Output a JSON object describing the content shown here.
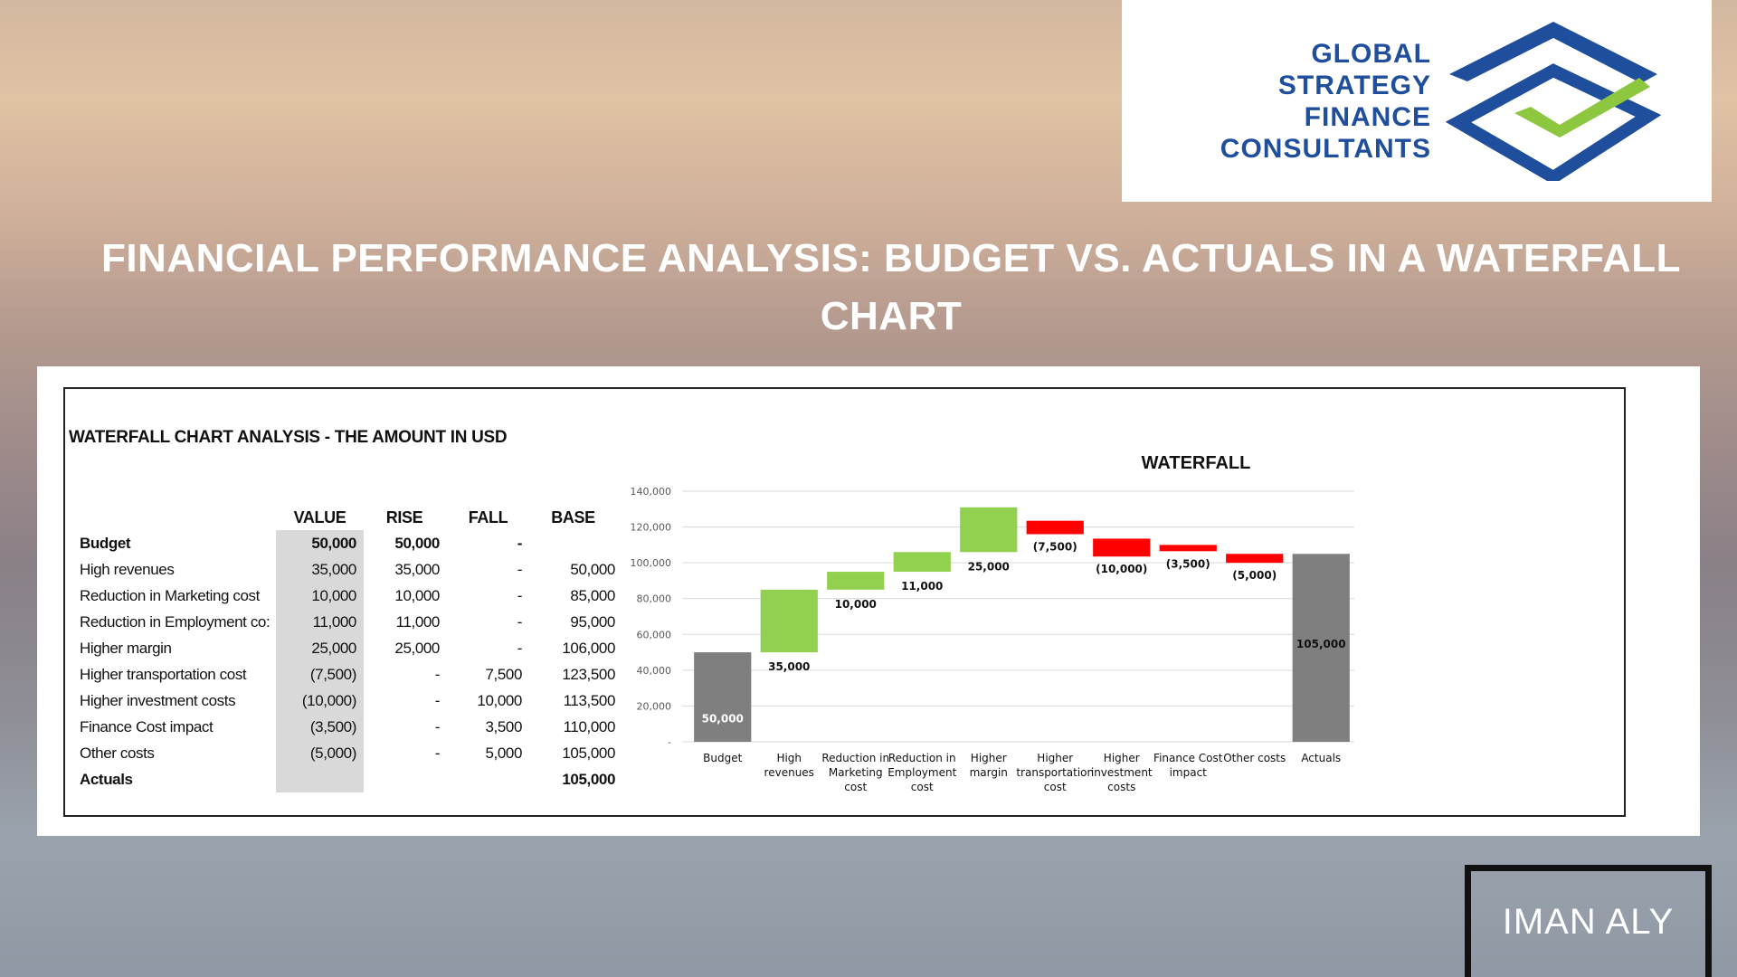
{
  "logo": {
    "lines": [
      "GLOBAL",
      "STRATEGY",
      "FINANCE",
      "CONSULTANTS"
    ],
    "colors": {
      "text": "#1f4e9c",
      "mark_blue": "#1f4e9c",
      "mark_green": "#8dc63f"
    }
  },
  "title": "FINANCIAL PERFORMANCE ANALYSIS: BUDGET VS. ACTUALS IN A WATERFALL CHART",
  "table": {
    "title": "WATERFALL CHART ANALYSIS - THE AMOUNT IN USD",
    "headers": [
      "VALUE",
      "RISE",
      "FALL",
      "BASE"
    ],
    "rows": [
      {
        "label": "Budget",
        "value": "50,000",
        "rise": "50,000",
        "fall": "-",
        "base": ""
      },
      {
        "label": "High revenues",
        "value": "35,000",
        "rise": "35,000",
        "fall": "-",
        "base": "50,000"
      },
      {
        "label": "Reduction in Marketing cost",
        "value": "10,000",
        "rise": "10,000",
        "fall": "-",
        "base": "85,000"
      },
      {
        "label": "Reduction in Employment co:",
        "value": "11,000",
        "rise": "11,000",
        "fall": "-",
        "base": "95,000"
      },
      {
        "label": "Higher margin",
        "value": "25,000",
        "rise": "25,000",
        "fall": "-",
        "base": "106,000"
      },
      {
        "label": "Higher transportation cost",
        "value": "(7,500)",
        "rise": "-",
        "fall": "7,500",
        "base": "123,500"
      },
      {
        "label": "Higher investment  costs",
        "value": "(10,000)",
        "rise": "-",
        "fall": "10,000",
        "base": "113,500"
      },
      {
        "label": "Finance Cost impact",
        "value": "(3,500)",
        "rise": "-",
        "fall": "3,500",
        "base": "110,000"
      },
      {
        "label": "Other costs",
        "value": "(5,000)",
        "rise": "-",
        "fall": "5,000",
        "base": "105,000"
      },
      {
        "label": "Actuals",
        "value": "",
        "rise": "",
        "fall": "",
        "base": "105,000"
      }
    ]
  },
  "chart_data": {
    "type": "bar",
    "subtype": "waterfall",
    "title": "WATERFALL",
    "categories": [
      "Budget",
      "High revenues",
      "Reduction in Marketing cost",
      "Reduction in Employment cost",
      "Higher margin",
      "Higher transportation cost",
      "Higher investment costs",
      "Finance Cost impact",
      "Other costs",
      "Actuals"
    ],
    "values": [
      50000,
      35000,
      10000,
      11000,
      25000,
      -7500,
      -10000,
      -3500,
      -5000,
      105000
    ],
    "bases": [
      0,
      50000,
      85000,
      95000,
      106000,
      123500,
      113500,
      110000,
      105000,
      0
    ],
    "kinds": [
      "total",
      "rise",
      "rise",
      "rise",
      "rise",
      "fall",
      "fall",
      "fall",
      "fall",
      "total"
    ],
    "data_labels": [
      "50,000",
      "35,000",
      "10,000",
      "11,000",
      "25,000",
      "(7,500)",
      "(10,000)",
      "(3,500)",
      "(5,000)",
      "105,000"
    ],
    "yticks": [
      "-",
      "20,000",
      "40,000",
      "60,000",
      "80,000",
      "100,000",
      "120,000",
      "140,000"
    ],
    "ylim": [
      0,
      140000
    ],
    "grid": true,
    "colors": {
      "total": "#7f7f7f",
      "rise": "#92d050",
      "fall": "#ff0000"
    }
  },
  "author": "IMAN ALY"
}
